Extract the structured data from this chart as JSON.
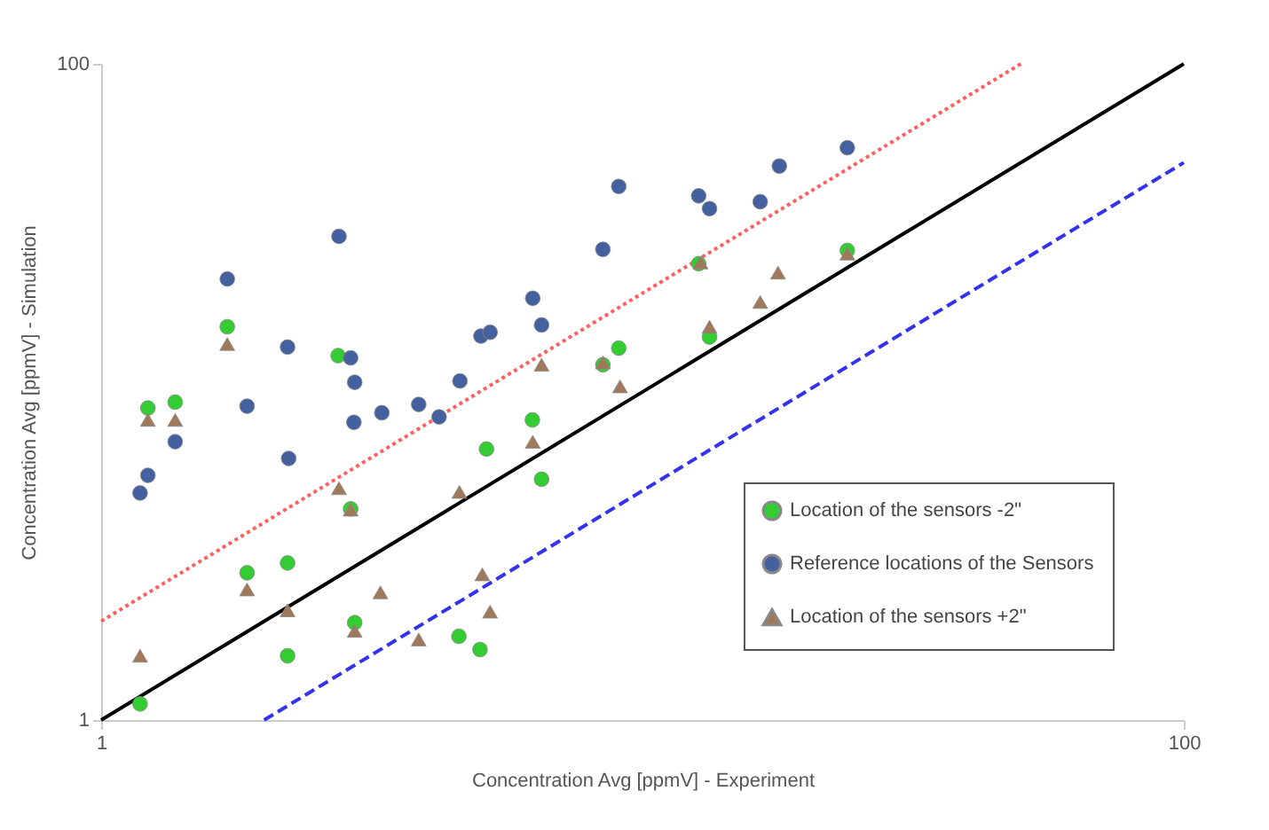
{
  "chart_data": {
    "type": "scatter",
    "xlabel": "Concentration Avg [ppmV] - Experiment",
    "ylabel": "Concentration Avg [ppmV] - Simulation",
    "log": "xy",
    "xlim": [
      1,
      100
    ],
    "ylim": [
      1,
      100
    ],
    "xticks": [
      1,
      100
    ],
    "yticks": [
      1,
      100
    ],
    "grid": false,
    "legend": "bottom right",
    "series": [
      {
        "name": "Location of the sensors -2\"",
        "color": "#33cc33",
        "marker": "circle",
        "x": [
          1.18,
          1.22,
          1.37,
          1.71,
          1.86,
          2.21,
          2.21,
          2.74,
          2.89,
          2.94,
          4.58,
          5.01,
          5.15,
          6.26,
          6.51,
          8.45,
          9.04,
          13.3,
          23.9,
          12.7
        ],
        "values": [
          1.12,
          8.93,
          9.31,
          15.8,
          2.81,
          3.01,
          1.57,
          12.9,
          4.4,
          1.98,
          1.8,
          1.64,
          6.7,
          8.22,
          5.42,
          12.1,
          13.6,
          14.7,
          27.0,
          24.6
        ]
      },
      {
        "name": "Reference locations of the Sensors",
        "color": "#44609e",
        "marker": "circle",
        "x": [
          1.18,
          1.22,
          1.37,
          1.71,
          1.86,
          2.21,
          2.22,
          2.75,
          2.89,
          2.94,
          2.93,
          3.3,
          3.86,
          4.21,
          4.6,
          5.03,
          5.23,
          6.27,
          6.51,
          8.45,
          9.04,
          12.7,
          13.3,
          16.5,
          17.9,
          23.9
        ],
        "values": [
          4.92,
          5.57,
          7.05,
          22.1,
          9.05,
          13.7,
          6.27,
          29.8,
          12.7,
          10.7,
          8.08,
          8.64,
          9.16,
          8.39,
          10.8,
          14.8,
          15.2,
          19.3,
          16.0,
          27.2,
          42.3,
          39.6,
          36.2,
          38.0,
          48.8,
          55.5
        ]
      },
      {
        "name": "Location of the sensors +2\"",
        "color": "#a0785a",
        "marker": "triangle",
        "x": [
          1.18,
          1.22,
          1.37,
          1.71,
          1.86,
          2.21,
          2.75,
          2.89,
          2.94,
          3.28,
          3.86,
          4.59,
          5.06,
          5.23,
          6.27,
          6.51,
          8.45,
          9.09,
          12.8,
          13.3,
          16.5,
          17.8,
          23.9
        ],
        "values": [
          1.57,
          8.22,
          8.22,
          14.0,
          2.5,
          2.16,
          5.09,
          4.38,
          1.87,
          2.45,
          1.76,
          4.96,
          2.78,
          2.14,
          7.05,
          12.1,
          12.3,
          10.4,
          24.8,
          15.8,
          18.8,
          23.1,
          26.4
        ]
      },
      {
        "type": "line",
        "color": "#000000",
        "line_style": "solid",
        "marker": "none",
        "x": [
          1,
          100
        ],
        "values": [
          1,
          100
        ]
      },
      {
        "type": "line",
        "color": "#ff6060",
        "line_style": "dotted",
        "marker": "none",
        "x": [
          1,
          50
        ],
        "values": [
          2,
          100
        ]
      },
      {
        "type": "line",
        "color": "#3333ee",
        "line_style": "dashed",
        "marker": "none",
        "x": [
          2,
          100
        ],
        "values": [
          1,
          50
        ]
      }
    ]
  }
}
